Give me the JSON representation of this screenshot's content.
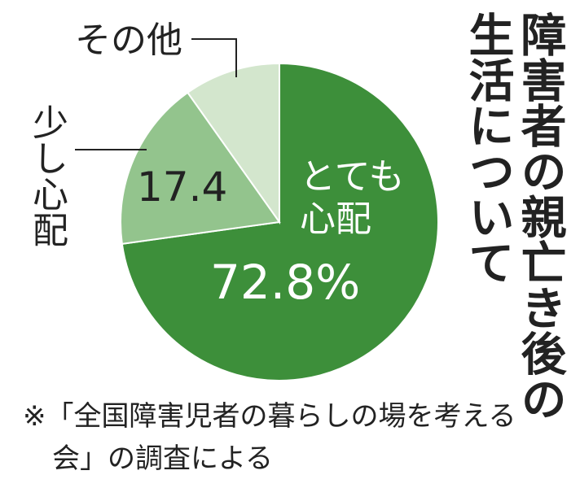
{
  "chart_data": {
    "type": "pie",
    "title": "障害者の親亡き後の生活について",
    "categories": [
      "とても心配",
      "少し心配",
      "その他"
    ],
    "values": [
      72.8,
      17.4,
      9.8
    ],
    "value_labels": [
      "72.8%",
      "17.4",
      null
    ],
    "colors": [
      "#3d8f3a",
      "#93c48d",
      "#d3e6cd"
    ],
    "footnote": "※「全国障害児者の暮らしの場を考える会」の調査による"
  }
}
